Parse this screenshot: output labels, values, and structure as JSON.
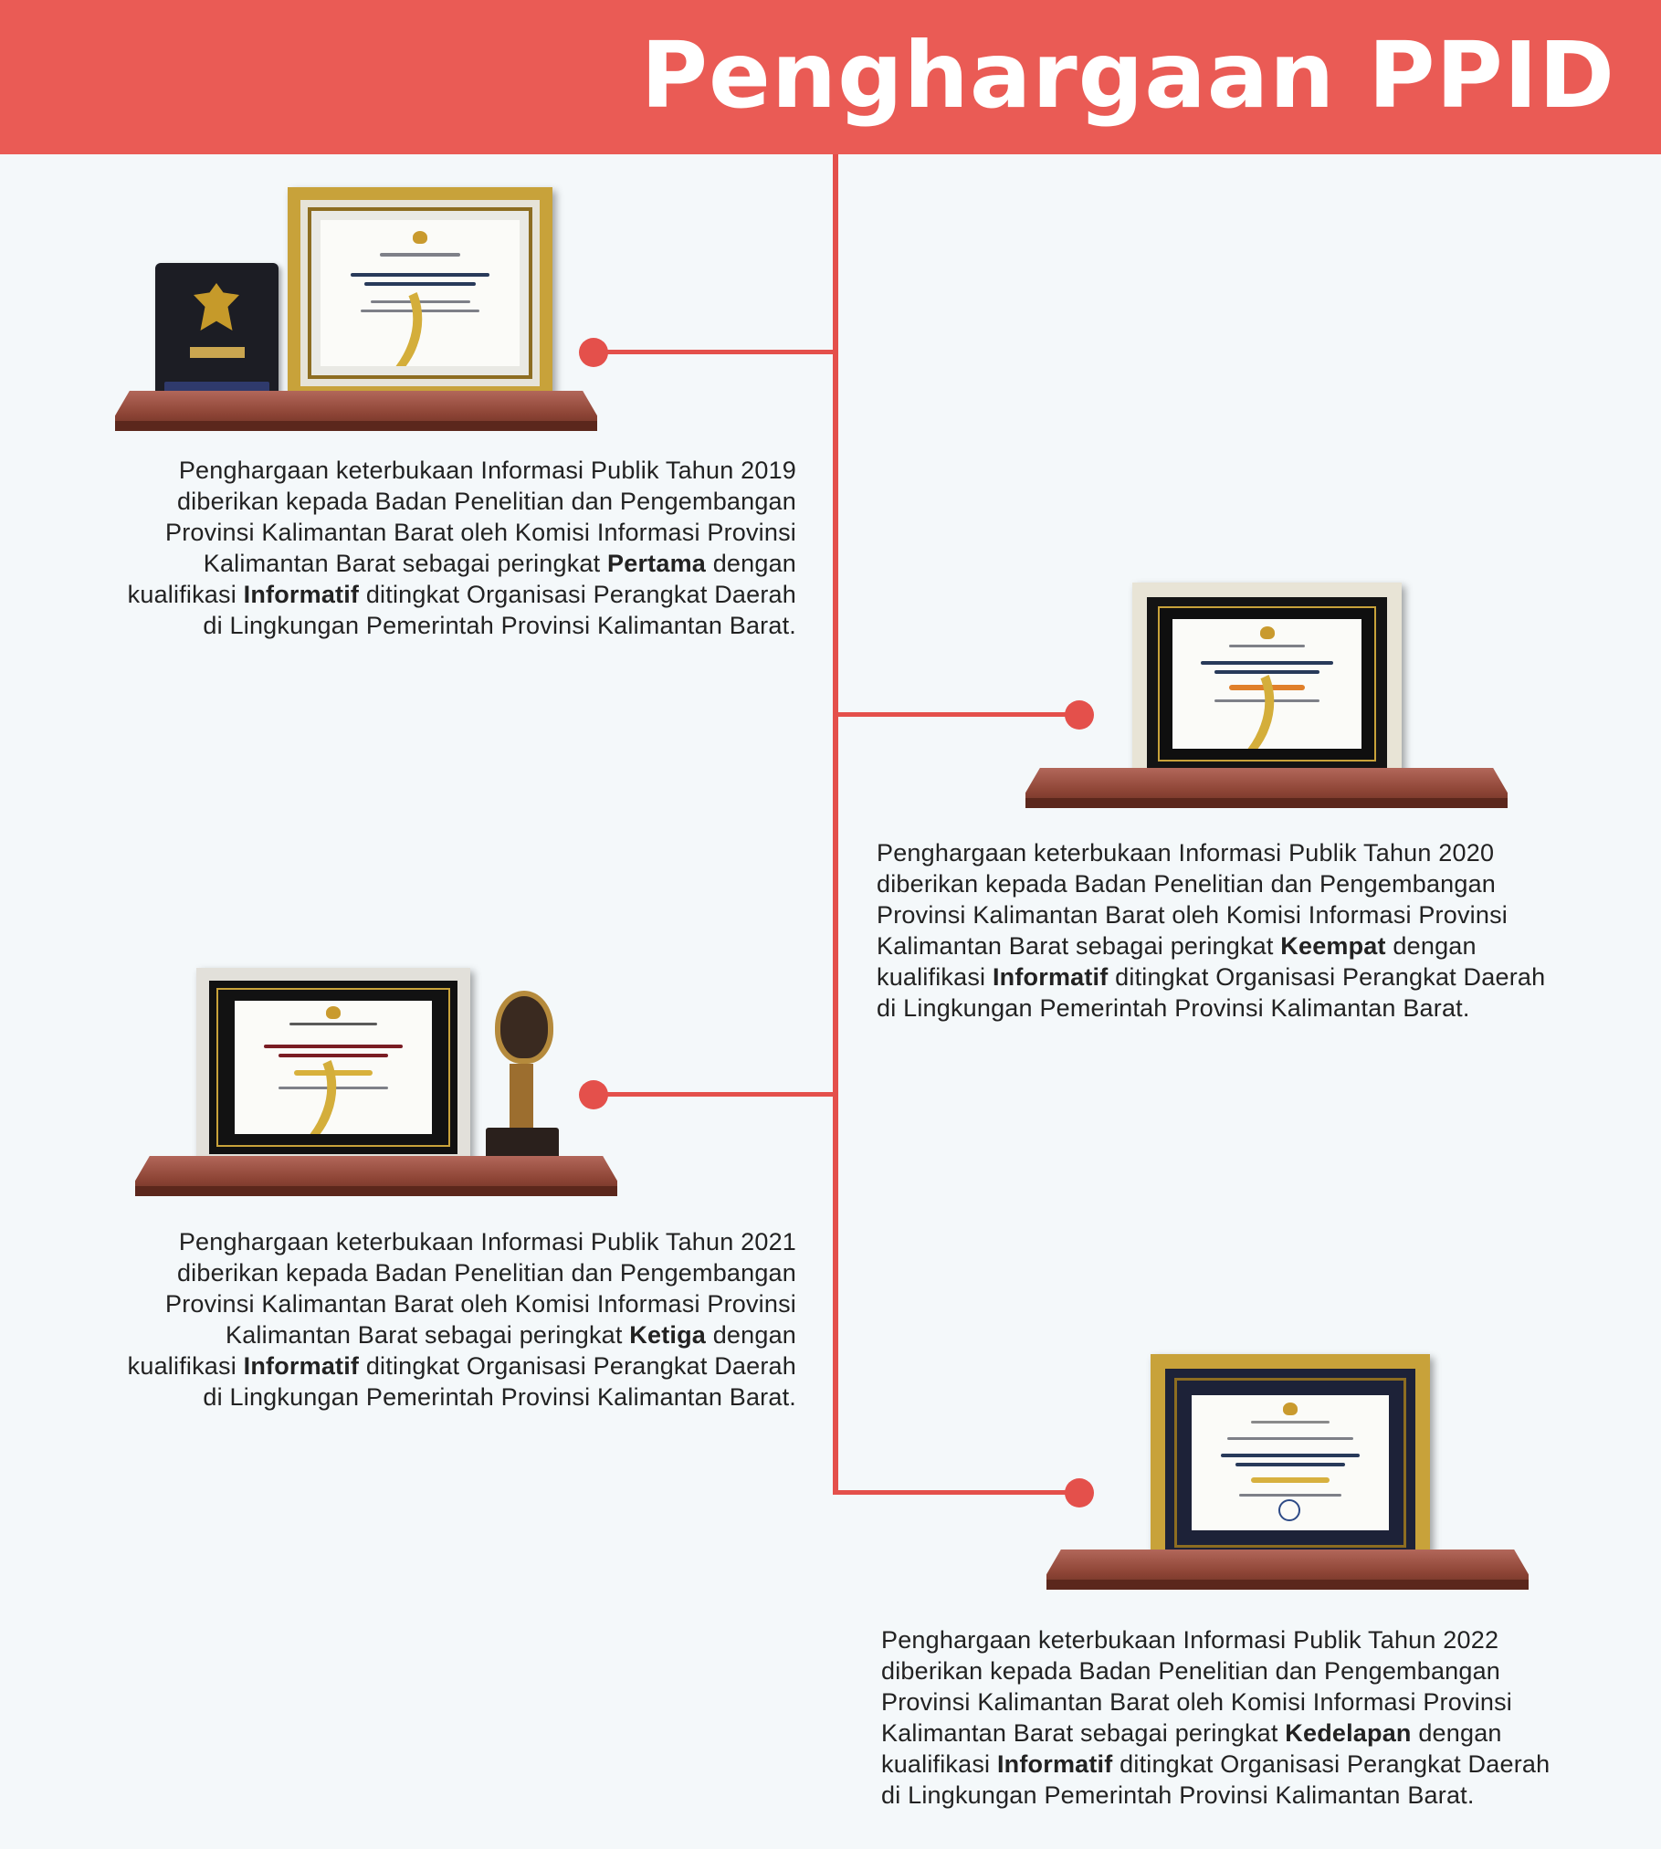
{
  "header": {
    "title": "Penghargaan PPID"
  },
  "awards": [
    {
      "year": "2019",
      "intro": "Penghargaan keterbukaan Informasi Publik Tahun 2019",
      "line2": "diberikan kepada Badan Penelitian dan Pengembangan",
      "line3": "Provinsi Kalimantan Barat oleh Komisi Informasi Provinsi",
      "line4_pre": "Kalimantan Barat sebagai peringkat ",
      "rank": "Pertama",
      "line4_post": " dengan",
      "line5_pre": "kualifikasi ",
      "qualification": "Informatif",
      "line5_post": " ditingkat Organisasi Perangkat Daerah",
      "line6": "di Lingkungan Pemerintah Provinsi Kalimantan Barat."
    },
    {
      "year": "2020",
      "intro": "Penghargaan keterbukaan Informasi Publik Tahun 2020",
      "line2": "diberikan kepada Badan Penelitian dan Pengembangan",
      "line3": "Provinsi Kalimantan Barat oleh Komisi Informasi Provinsi",
      "line4_pre": "Kalimantan Barat sebagai peringkat ",
      "rank": "Keempat",
      "line4_post": " dengan",
      "line5_pre": "kualifikasi ",
      "qualification": "Informatif",
      "line5_post": " ditingkat Organisasi Perangkat Daerah",
      "line6": "di Lingkungan Pemerintah Provinsi Kalimantan Barat."
    },
    {
      "year": "2021",
      "intro": "Penghargaan keterbukaan Informasi Publik Tahun 2021",
      "line2": "diberikan kepada Badan Penelitian dan Pengembangan",
      "line3": "Provinsi Kalimantan Barat oleh Komisi Informasi Provinsi",
      "line4_pre": "Kalimantan Barat sebagai peringkat ",
      "rank": "Ketiga",
      "line4_post": " dengan",
      "line5_pre": "kualifikasi ",
      "qualification": "Informatif",
      "line5_post": " ditingkat Organisasi Perangkat Daerah",
      "line6": "di Lingkungan Pemerintah Provinsi Kalimantan Barat."
    },
    {
      "year": "2022",
      "intro": "Penghargaan keterbukaan Informasi Publik Tahun 2022",
      "line2": "diberikan kepada Badan Penelitian dan Pengembangan",
      "line3": "Provinsi Kalimantan Barat oleh Komisi Informasi Provinsi",
      "line4_pre": "Kalimantan Barat sebagai peringkat ",
      "rank": "Kedelapan",
      "line4_post": " dengan",
      "line5_pre": "kualifikasi ",
      "qualification": "Informatif",
      "line5_post": " ditingkat Organisasi Perangkat Daerah",
      "line6": "di Lingkungan Pemerintah Provinsi Kalimantan Barat."
    }
  ],
  "colors": {
    "accent": "#ea5b55",
    "timeline": "#e4504b",
    "shelf": "#8f4637",
    "frame_gold": "#c8a23a",
    "background": "#f4f8fa"
  }
}
